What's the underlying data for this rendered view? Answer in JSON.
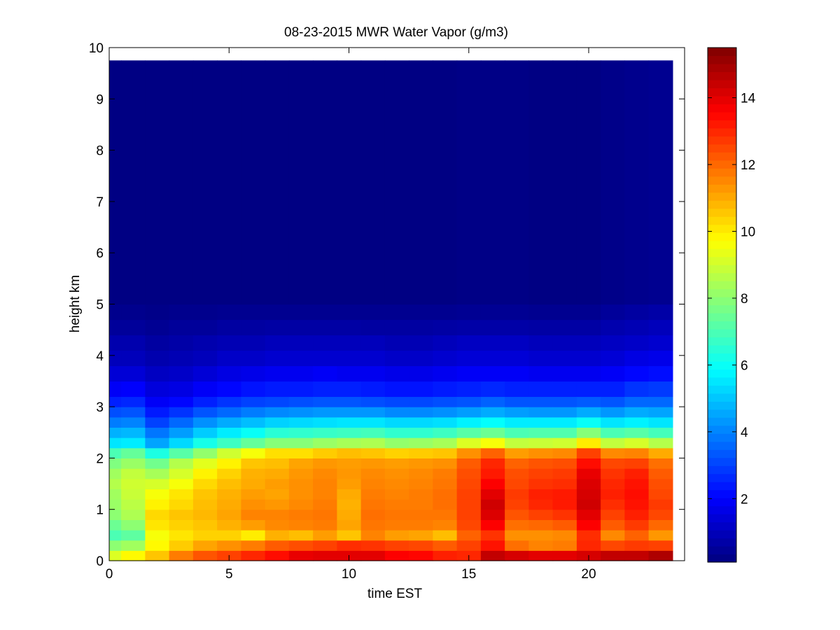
{
  "chart_data": {
    "type": "heatmap",
    "title": "08-23-2015 MWR Water Vapor (g/m3)",
    "xlabel": "time EST",
    "ylabel": "height km",
    "xlim": [
      0,
      24
    ],
    "ylim": [
      0,
      10
    ],
    "xticks": [
      0,
      5,
      10,
      15,
      20
    ],
    "yticks": [
      0,
      1,
      2,
      3,
      4,
      5,
      6,
      7,
      8,
      9,
      10
    ],
    "colorbar": {
      "colormap": "jet",
      "clim": [
        0.1,
        15.5
      ],
      "ticks": [
        2,
        4,
        6,
        8,
        10,
        12,
        14
      ]
    },
    "x": [
      0,
      1,
      2,
      3,
      4,
      5,
      6,
      7,
      8,
      9,
      10,
      11,
      12,
      13,
      14,
      15,
      16,
      17,
      18,
      19,
      20,
      21,
      22,
      23
    ],
    "height_levels": [
      0,
      0.2,
      0.4,
      0.6,
      0.8,
      1.0,
      1.2,
      1.4,
      1.6,
      1.8,
      2.0,
      2.2,
      2.4,
      2.6,
      2.8,
      3.0,
      3.2,
      3.5,
      3.8,
      4.1,
      4.4,
      4.7,
      5.0,
      9.75
    ],
    "z": [
      [
        9.2,
        8.0,
        7.0,
        7.5,
        8.0,
        8.2,
        8.3,
        8.6,
        8.3,
        7.8,
        7.0,
        5.5,
        4.7,
        3.9,
        3.2,
        2.5,
        1.9,
        1.4,
        1.0,
        0.8,
        0.5,
        0.3,
        0.15,
        0.1
      ],
      [
        9.8,
        8.3,
        7.3,
        8.0,
        8.5,
        8.7,
        8.9,
        9.0,
        8.8,
        8.2,
        7.4,
        5.6,
        4.8,
        4.0,
        3.3,
        2.6,
        2.0,
        1.4,
        1.0,
        0.8,
        0.5,
        0.3,
        0.15,
        0.1
      ],
      [
        10.6,
        9.8,
        9.6,
        10.1,
        10.3,
        9.9,
        9.6,
        9.1,
        8.4,
        7.6,
        6.3,
        4.5,
        3.8,
        3.0,
        2.4,
        1.9,
        1.5,
        1.1,
        0.8,
        0.6,
        0.4,
        0.25,
        0.15,
        0.1
      ],
      [
        11.7,
        10.5,
        10.1,
        10.4,
        10.6,
        10.3,
        10.1,
        9.6,
        9.1,
        8.6,
        7.2,
        5.3,
        4.4,
        3.6,
        2.8,
        2.1,
        1.6,
        1.2,
        0.9,
        0.7,
        0.5,
        0.3,
        0.15,
        0.1
      ],
      [
        12.3,
        11.1,
        10.4,
        10.6,
        10.8,
        10.7,
        10.6,
        10.3,
        9.9,
        9.3,
        8.1,
        6.2,
        5.1,
        4.2,
        3.3,
        2.5,
        1.9,
        1.4,
        1.0,
        0.8,
        0.5,
        0.3,
        0.15,
        0.1
      ],
      [
        12.6,
        11.4,
        10.4,
        10.9,
        11.1,
        11.0,
        10.9,
        10.7,
        10.4,
        9.9,
        9.0,
        6.8,
        5.6,
        4.6,
        3.6,
        2.8,
        2.1,
        1.6,
        1.2,
        0.9,
        0.6,
        0.35,
        0.15,
        0.1
      ],
      [
        13.0,
        11.7,
        10.0,
        11.2,
        11.6,
        11.4,
        11.2,
        11.0,
        10.9,
        10.6,
        9.6,
        7.4,
        6.0,
        4.9,
        3.9,
        3.0,
        2.3,
        1.7,
        1.2,
        0.9,
        0.6,
        0.35,
        0.15,
        0.1
      ],
      [
        13.4,
        12.2,
        10.9,
        11.5,
        11.6,
        11.3,
        11.1,
        11.2,
        11.0,
        10.7,
        10.2,
        7.9,
        6.5,
        5.2,
        4.1,
        3.1,
        2.4,
        1.8,
        1.3,
        1.0,
        0.65,
        0.35,
        0.15,
        0.1
      ],
      [
        13.9,
        12.4,
        10.7,
        11.6,
        11.7,
        11.5,
        11.4,
        11.4,
        11.3,
        11.1,
        10.2,
        7.9,
        6.6,
        5.3,
        4.2,
        3.2,
        2.4,
        1.8,
        1.3,
        1.0,
        0.65,
        0.35,
        0.15,
        0.1
      ],
      [
        14.0,
        12.6,
        11.2,
        11.7,
        11.8,
        11.7,
        11.6,
        11.6,
        11.5,
        11.3,
        10.5,
        8.2,
        6.7,
        5.4,
        4.3,
        3.3,
        2.5,
        1.9,
        1.3,
        1.0,
        0.65,
        0.35,
        0.15,
        0.1
      ],
      [
        14.0,
        12.9,
        10.6,
        11.1,
        11.0,
        10.9,
        11.0,
        11.2,
        11.3,
        11.2,
        10.7,
        8.4,
        6.8,
        5.5,
        4.3,
        3.3,
        2.5,
        1.8,
        1.3,
        1.0,
        0.65,
        0.35,
        0.15,
        0.1
      ],
      [
        14.0,
        12.8,
        11.6,
        11.8,
        11.9,
        11.8,
        11.7,
        11.6,
        11.5,
        11.3,
        10.6,
        8.5,
        6.9,
        5.5,
        4.3,
        3.2,
        2.4,
        1.8,
        1.3,
        1.0,
        0.6,
        0.35,
        0.15,
        0.1
      ],
      [
        13.6,
        12.6,
        11.2,
        11.7,
        11.8,
        11.7,
        11.6,
        11.5,
        11.4,
        11.2,
        10.4,
        8.1,
        6.6,
        5.3,
        4.1,
        3.1,
        2.3,
        1.7,
        1.2,
        0.9,
        0.6,
        0.35,
        0.15,
        0.1
      ],
      [
        13.5,
        12.5,
        11.1,
        11.7,
        11.8,
        11.7,
        11.7,
        11.6,
        11.5,
        11.3,
        10.5,
        8.2,
        6.6,
        5.3,
        4.1,
        3.1,
        2.3,
        1.7,
        1.2,
        0.9,
        0.6,
        0.35,
        0.15,
        0.1
      ],
      [
        13.1,
        12.2,
        10.7,
        11.6,
        11.8,
        11.9,
        11.9,
        11.8,
        11.7,
        11.4,
        10.6,
        8.4,
        6.8,
        5.4,
        4.2,
        3.2,
        2.4,
        1.8,
        1.3,
        1.0,
        0.65,
        0.35,
        0.15,
        0.1
      ],
      [
        13.0,
        12.6,
        12.1,
        12.5,
        12.6,
        12.6,
        12.6,
        12.5,
        12.4,
        12.2,
        11.4,
        9.2,
        7.2,
        5.7,
        4.4,
        3.3,
        2.5,
        1.9,
        1.4,
        1.1,
        0.7,
        0.4,
        0.2,
        0.1
      ],
      [
        14.5,
        13.3,
        12.8,
        13.6,
        14.1,
        14.3,
        14.0,
        13.6,
        13.2,
        13.0,
        12.1,
        9.6,
        7.5,
        5.9,
        4.6,
        3.5,
        2.6,
        1.9,
        1.4,
        1.1,
        0.7,
        0.4,
        0.2,
        0.1
      ],
      [
        14.2,
        11.9,
        11.4,
        11.9,
        12.3,
        12.6,
        12.7,
        12.5,
        12.4,
        12.1,
        11.2,
        8.8,
        7.0,
        5.6,
        4.4,
        3.3,
        2.5,
        1.9,
        1.4,
        1.1,
        0.7,
        0.4,
        0.2,
        0.1
      ],
      [
        14.0,
        11.6,
        11.4,
        12.0,
        12.6,
        13.0,
        13.1,
        12.8,
        12.6,
        12.3,
        11.4,
        8.9,
        7.1,
        5.6,
        4.3,
        3.3,
        2.5,
        1.8,
        1.3,
        1.0,
        0.65,
        0.35,
        0.15,
        0.1
      ],
      [
        14.0,
        11.7,
        11.5,
        12.2,
        12.8,
        13.2,
        13.2,
        12.9,
        12.7,
        12.4,
        11.5,
        9.0,
        7.1,
        5.6,
        4.3,
        3.3,
        2.5,
        1.8,
        1.3,
        1.0,
        0.65,
        0.35,
        0.15,
        0.1
      ],
      [
        14.2,
        13.0,
        12.9,
        13.6,
        14.0,
        14.3,
        14.2,
        14.1,
        13.9,
        13.4,
        12.6,
        10.0,
        7.9,
        6.0,
        4.6,
        3.4,
        2.5,
        1.8,
        1.3,
        1.0,
        0.65,
        0.35,
        0.15,
        0.1
      ],
      [
        14.5,
        12.5,
        11.5,
        12.2,
        12.6,
        12.9,
        13.1,
        13.0,
        12.8,
        12.5,
        11.5,
        8.8,
        7.0,
        5.5,
        4.3,
        3.3,
        2.5,
        1.9,
        1.4,
        1.1,
        0.8,
        0.5,
        0.25,
        0.1
      ],
      [
        14.5,
        12.7,
        12.1,
        12.7,
        13.1,
        13.3,
        13.4,
        13.3,
        13.1,
        12.6,
        11.6,
        9.1,
        7.2,
        5.7,
        4.6,
        3.6,
        2.8,
        2.1,
        1.6,
        1.2,
        0.9,
        0.6,
        0.3,
        0.1
      ],
      [
        14.8,
        12.6,
        11.3,
        12.0,
        12.5,
        12.7,
        12.5,
        12.4,
        12.2,
        11.9,
        11.0,
        8.6,
        6.9,
        5.5,
        4.5,
        3.6,
        2.9,
        2.2,
        1.7,
        1.3,
        1.0,
        0.7,
        0.35,
        0.1
      ]
    ]
  }
}
